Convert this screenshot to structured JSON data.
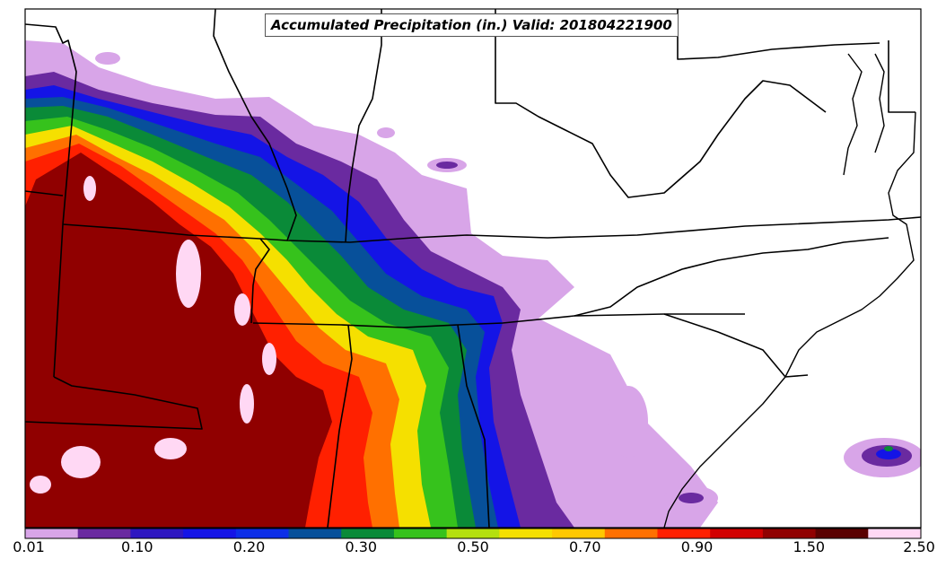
{
  "title": "Accumulated Precipitation (in.) Valid: 201804221900",
  "colorbar": {
    "tick_labels": [
      "0.01",
      "0.10",
      "0.20",
      "0.30",
      "0.50",
      "0.70",
      "0.90",
      "1.50",
      "2.50"
    ],
    "colors": [
      "#d8a5e8",
      "#6a2aa0",
      "#2e17c0",
      "#1414e6",
      "#0c2ee8",
      "#07509a",
      "#0a8a38",
      "#36c21c",
      "#b4e010",
      "#f5e000",
      "#ffc800",
      "#ff7000",
      "#ff2000",
      "#d20000",
      "#900000",
      "#5a0000",
      "#ffd8f4"
    ]
  },
  "map_layers": {
    "light_purple": "#d8a5e8",
    "purple": "#6a2aa0",
    "blue": "#1414e6",
    "teal": "#07509a",
    "green": "#0a8a38",
    "light_green": "#36c21c",
    "yellow": "#f5e000",
    "orange": "#ff7000",
    "red": "#ff2000",
    "dark_red": "#900000",
    "pink": "#ffd8f4"
  }
}
